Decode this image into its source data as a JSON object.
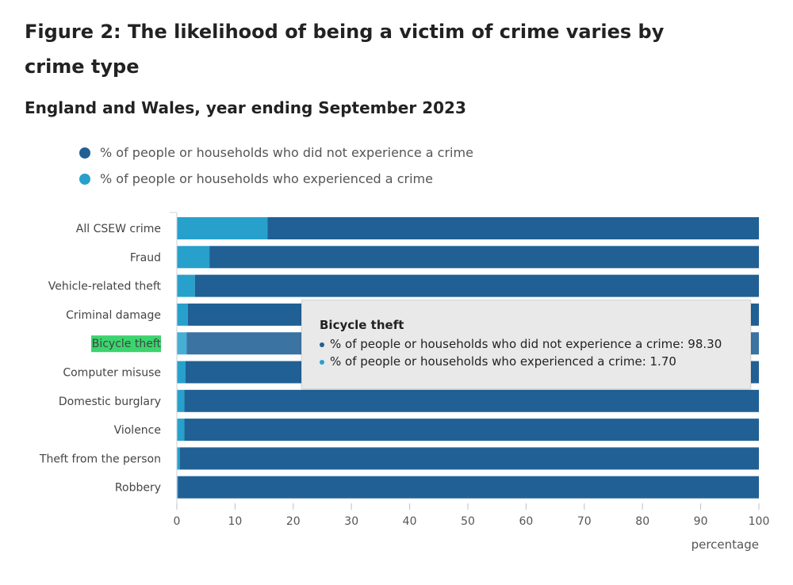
{
  "header": {
    "title": "Figure 2: The likelihood of being a victim of crime varies by crime type",
    "subtitle": "England and Wales, year ending September 2023"
  },
  "colors": {
    "not_experienced": "#206095",
    "experienced": "#27a0cc",
    "highlight": "#3bd46e"
  },
  "legend": [
    {
      "label": "% of people or households who did not experience a crime",
      "color": "#206095"
    },
    {
      "label": "% of people or households who experienced a crime",
      "color": "#27a0cc"
    }
  ],
  "tooltip": {
    "title": "Bicycle theft",
    "row1": "% of people or households who did not experience a crime: 98.30",
    "row2": "% of people or households who experienced a crime: 1.70"
  },
  "chart_data": {
    "type": "bar",
    "orientation": "horizontal",
    "stacked": true,
    "categories": [
      "All CSEW crime",
      "Fraud",
      "Vehicle-related theft",
      "Criminal damage",
      "Bicycle theft",
      "Computer misuse",
      "Domestic burglary",
      "Violence",
      "Theft from the person",
      "Robbery"
    ],
    "series": [
      {
        "name": "% of people or households who experienced a crime",
        "values": [
          15.6,
          5.6,
          3.1,
          1.9,
          1.7,
          1.5,
          1.3,
          1.3,
          0.5,
          0.2
        ]
      },
      {
        "name": "% of people or households who did not experience a crime",
        "values": [
          84.4,
          94.4,
          96.9,
          98.1,
          98.3,
          98.5,
          98.7,
          98.7,
          99.5,
          99.8
        ]
      }
    ],
    "highlighted_category": "Bicycle theft",
    "xlabel": "percentage",
    "xlim": [
      0,
      100
    ],
    "xticks": [
      0,
      10,
      20,
      30,
      40,
      50,
      60,
      70,
      80,
      90,
      100
    ],
    "grid": false,
    "legend_position": "top"
  }
}
